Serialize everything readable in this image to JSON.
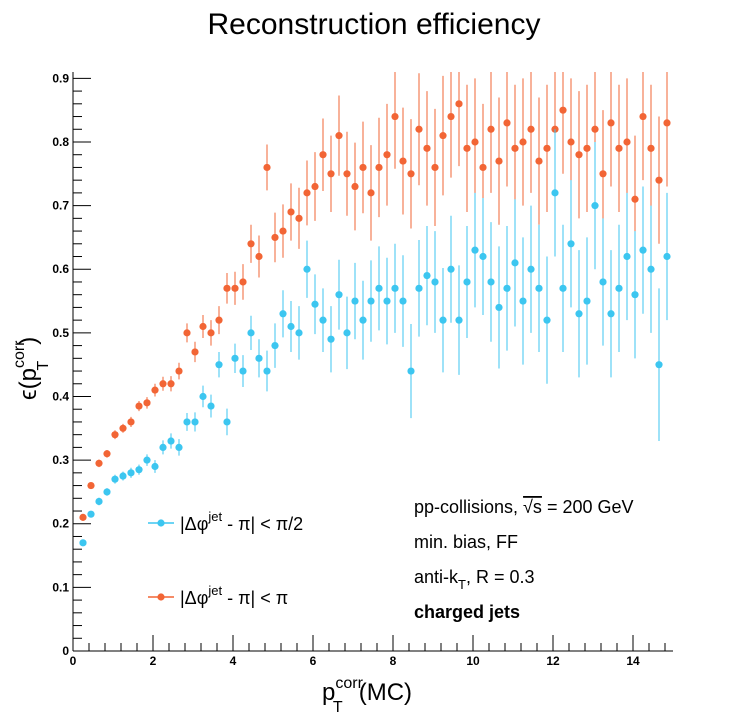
{
  "chart_data": {
    "type": "scatter",
    "title": "Reconstruction efficiency",
    "x_label": {
      "base": "p",
      "sub": "T",
      "sup": "corr",
      "tail": "(MC)"
    },
    "y_label": {
      "head": "ϵ(p",
      "sub": "T",
      "sup": "corr",
      "tail": ")"
    },
    "xlim": [
      0,
      15
    ],
    "ylim": [
      0,
      0.91
    ],
    "xticks": [
      0,
      2,
      4,
      6,
      8,
      10,
      12,
      14
    ],
    "yticks": [
      0,
      0.1,
      0.2,
      0.3,
      0.4,
      0.5,
      0.6,
      0.7,
      0.8,
      0.9
    ],
    "legend": "bottom-left",
    "annotations": [
      {
        "parts": [
          "pp-collisions, ",
          "√s",
          " = 200 GeV"
        ]
      },
      {
        "parts": [
          "min. bias, FF"
        ]
      },
      {
        "parts": [
          "anti-k",
          "T",
          ", R = 0.3"
        ]
      },
      {
        "parts": [
          "charged jets"
        ]
      }
    ],
    "x": [
      0.25,
      0.45,
      0.65,
      0.85,
      1.05,
      1.25,
      1.45,
      1.65,
      1.85,
      2.05,
      2.25,
      2.45,
      2.65,
      2.85,
      3.05,
      3.25,
      3.45,
      3.65,
      3.85,
      4.05,
      4.25,
      4.45,
      4.65,
      4.85,
      5.05,
      5.25,
      5.45,
      5.65,
      5.85,
      6.05,
      6.25,
      6.45,
      6.65,
      6.85,
      7.05,
      7.25,
      7.45,
      7.65,
      7.85,
      8.05,
      8.25,
      8.45,
      8.65,
      8.85,
      9.05,
      9.25,
      9.45,
      9.65,
      9.85,
      10.05,
      10.25,
      10.45,
      10.65,
      10.85,
      11.05,
      11.25,
      11.45,
      11.65,
      11.85,
      12.05,
      12.25,
      12.45,
      12.65,
      12.85,
      13.05,
      13.25,
      13.45,
      13.65,
      13.85,
      14.05,
      14.25,
      14.45,
      14.65,
      14.85
    ],
    "series": [
      {
        "name": [
          "|Δφ",
          "jet",
          " - π| < π/2"
        ],
        "color": "#3cc6f0",
        "values": [
          0.17,
          0.215,
          0.235,
          0.25,
          0.27,
          0.275,
          0.28,
          0.285,
          0.3,
          0.29,
          0.32,
          0.33,
          0.32,
          0.36,
          0.36,
          0.4,
          0.385,
          0.45,
          0.36,
          0.46,
          0.44,
          0.5,
          0.46,
          0.44,
          0.48,
          0.53,
          0.51,
          0.5,
          0.6,
          0.545,
          0.52,
          0.49,
          0.56,
          0.5,
          0.55,
          0.52,
          0.55,
          0.57,
          0.55,
          0.57,
          0.55,
          0.44,
          0.57,
          0.59,
          0.58,
          0.52,
          0.6,
          0.52,
          0.58,
          0.63,
          0.62,
          0.58,
          0.54,
          0.57,
          0.61,
          0.55,
          0.6,
          0.57,
          0.52,
          0.72,
          0.57,
          0.64,
          0.53,
          0.55,
          0.7,
          0.58,
          0.53,
          0.57,
          0.62,
          0.56,
          0.63,
          0.6,
          0.45,
          0.62
        ],
        "errors": [
          0.005,
          0.005,
          0.006,
          0.006,
          0.007,
          0.007,
          0.008,
          0.008,
          0.009,
          0.01,
          0.011,
          0.012,
          0.013,
          0.014,
          0.015,
          0.017,
          0.018,
          0.02,
          0.021,
          0.023,
          0.025,
          0.027,
          0.03,
          0.032,
          0.035,
          0.037,
          0.04,
          0.042,
          0.045,
          0.047,
          0.05,
          0.052,
          0.055,
          0.057,
          0.06,
          0.062,
          0.064,
          0.066,
          0.068,
          0.07,
          0.072,
          0.074,
          0.076,
          0.078,
          0.08,
          0.082,
          0.084,
          0.086,
          0.088,
          0.09,
          0.092,
          0.094,
          0.096,
          0.098,
          0.1,
          0.1,
          0.1,
          0.1,
          0.1,
          0.1,
          0.1,
          0.1,
          0.1,
          0.1,
          0.1,
          0.1,
          0.1,
          0.1,
          0.1,
          0.1,
          0.1,
          0.1,
          0.12,
          0.1
        ]
      },
      {
        "name": [
          "|Δφ",
          "jet",
          " - π| < π"
        ],
        "color": "#f26535",
        "values": [
          0.21,
          0.26,
          0.295,
          0.31,
          0.34,
          0.35,
          0.36,
          0.385,
          0.39,
          0.41,
          0.42,
          0.42,
          0.44,
          0.5,
          0.47,
          0.51,
          0.5,
          0.52,
          0.57,
          0.57,
          0.58,
          0.64,
          0.62,
          0.76,
          0.65,
          0.66,
          0.69,
          0.68,
          0.72,
          0.73,
          0.78,
          0.75,
          0.81,
          0.75,
          0.73,
          0.76,
          0.72,
          0.76,
          0.78,
          0.84,
          0.77,
          0.75,
          0.82,
          0.79,
          0.76,
          0.81,
          0.84,
          0.86,
          0.79,
          0.8,
          0.76,
          0.82,
          0.77,
          0.83,
          0.79,
          0.8,
          0.82,
          0.77,
          0.79,
          0.82,
          0.85,
          0.8,
          0.78,
          0.79,
          0.82,
          0.75,
          0.83,
          0.79,
          0.8,
          0.71,
          0.84,
          0.79,
          0.74,
          0.83
        ],
        "errors": [
          0.005,
          0.005,
          0.006,
          0.006,
          0.007,
          0.007,
          0.008,
          0.008,
          0.009,
          0.01,
          0.011,
          0.012,
          0.013,
          0.015,
          0.016,
          0.018,
          0.02,
          0.022,
          0.024,
          0.026,
          0.028,
          0.03,
          0.033,
          0.036,
          0.039,
          0.042,
          0.045,
          0.048,
          0.051,
          0.054,
          0.057,
          0.06,
          0.063,
          0.066,
          0.069,
          0.072,
          0.075,
          0.078,
          0.08,
          0.082,
          0.084,
          0.086,
          0.088,
          0.09,
          0.092,
          0.094,
          0.096,
          0.098,
          0.1,
          0.1,
          0.1,
          0.1,
          0.1,
          0.1,
          0.1,
          0.1,
          0.1,
          0.1,
          0.1,
          0.1,
          0.1,
          0.1,
          0.1,
          0.1,
          0.1,
          0.1,
          0.1,
          0.1,
          0.1,
          0.1,
          0.1,
          0.1,
          0.1,
          0.1
        ]
      }
    ]
  }
}
